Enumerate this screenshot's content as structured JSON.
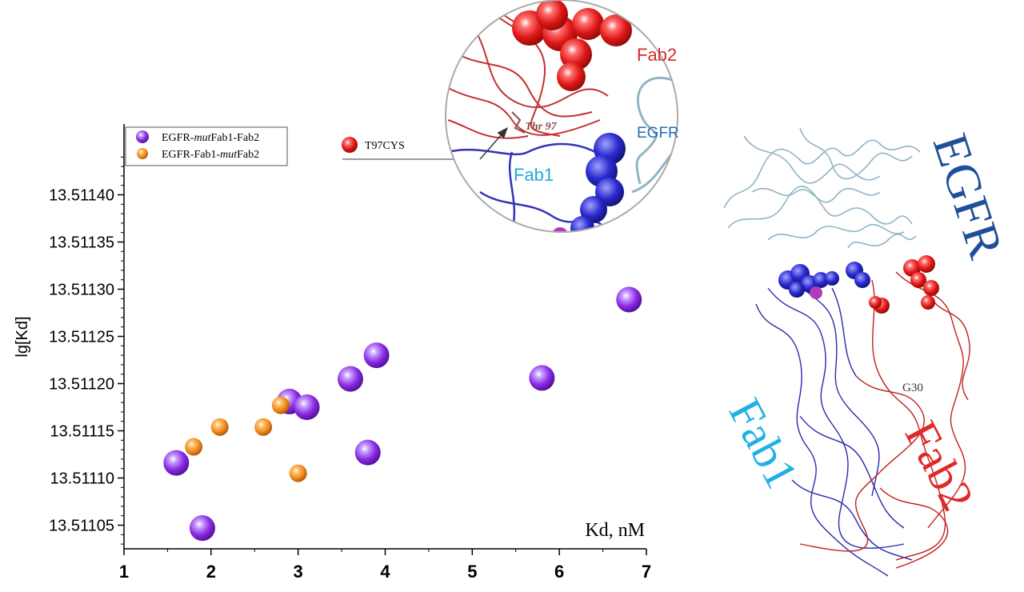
{
  "chart_data": {
    "type": "scatter",
    "xlabel": "Kd, nM",
    "ylabel": "lg[Kd]",
    "xlim": [
      1,
      7
    ],
    "ylim": [
      13.511025,
      13.511475
    ],
    "x_ticks": [
      "1",
      "2",
      "3",
      "4",
      "5",
      "6",
      "7"
    ],
    "y_ticks": [
      "13.51105",
      "13.51110",
      "13.51115",
      "13.51120",
      "13.51125",
      "13.51130",
      "13.51135",
      "13.51140"
    ],
    "legend_position": "top-left",
    "series": [
      {
        "name": "EGFR-mutFab1-Fab2",
        "color": "#8a2be2",
        "marker": "large-sphere",
        "points": [
          {
            "x": 1.6,
            "y": 13.511116
          },
          {
            "x": 1.9,
            "y": 13.511047
          },
          {
            "x": 2.9,
            "y": 13.511181
          },
          {
            "x": 3.1,
            "y": 13.511175
          },
          {
            "x": 3.6,
            "y": 13.511205
          },
          {
            "x": 3.8,
            "y": 13.511127
          },
          {
            "x": 3.9,
            "y": 13.51123
          },
          {
            "x": 5.8,
            "y": 13.511206
          },
          {
            "x": 6.8,
            "y": 13.511289
          }
        ]
      },
      {
        "name": "EGFR-Fab1-mutFab2",
        "color": "#f28c1e",
        "marker": "small-sphere",
        "points": [
          {
            "x": 1.8,
            "y": 13.511133
          },
          {
            "x": 2.1,
            "y": 13.511154
          },
          {
            "x": 2.6,
            "y": 13.511154
          },
          {
            "x": 2.8,
            "y": 13.511177
          },
          {
            "x": 3.0,
            "y": 13.511105
          }
        ]
      }
    ]
  },
  "legend": {
    "entries": [
      {
        "pre": "EGFR-",
        "em": "mut",
        "post": "Fab1-Fab2",
        "color": "#8a2be2"
      },
      {
        "pre": "EGFR-Fab1-",
        "em": "mut",
        "post": "Fab2",
        "color": "#f28c1e"
      }
    ]
  },
  "inset": {
    "marker_label": "T97CYS",
    "marker_color": "#e01818",
    "residue_label": "Thr 97",
    "fab2_label": "Fab2",
    "egfr_label": "EGFR",
    "fab1_label": "Fab1",
    "fab2_color": "#d42a2a",
    "egfr_color": "#1f6fb5",
    "fab1_color": "#1fa8e0"
  },
  "structure": {
    "egfr_label": "EGFR",
    "fab1_label": "Fab1",
    "fab2_label": "Fab2",
    "residue_label": "G30",
    "egfr_color": "#1f4f9a",
    "fab1_color": "#1fb0e6",
    "fab2_color": "#e02828",
    "egfr_ribbon_color": "#8fb4c4",
    "fab1_ribbon_color": "#2a2ab0",
    "fab2_ribbon_color": "#c02020"
  }
}
